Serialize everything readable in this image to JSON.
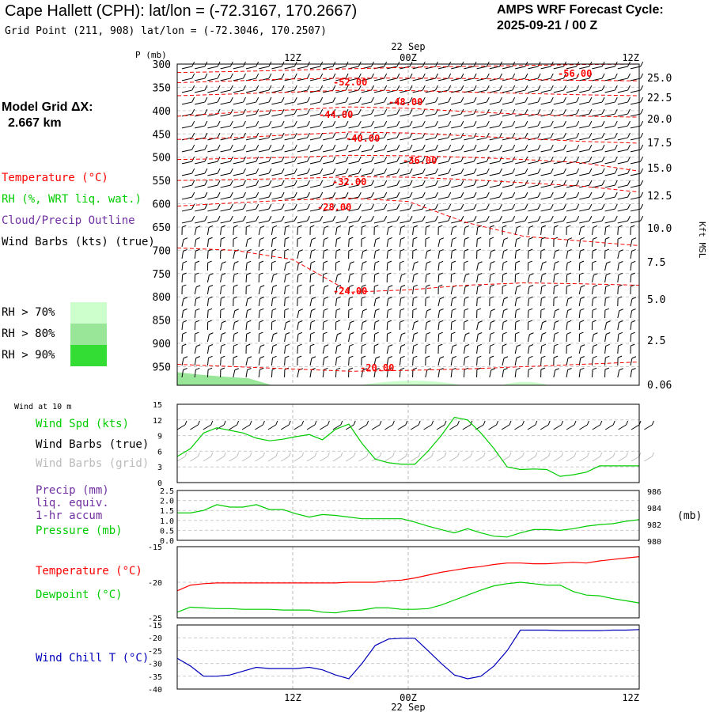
{
  "header": {
    "title": "Cape Hallett (CPH):  lat/lon = (-72.3167, 170.2667)",
    "subtitle": "Grid Point (211, 908) lat/lon = (-72.3046, 170.2507)",
    "cycle_line1": "AMPS WRF Forecast Cycle:",
    "cycle_line2": "2025-09-21 / 00  Z"
  },
  "side": {
    "grid_label": "Model Grid ΔX:",
    "grid_value": "2.667 km",
    "legend_temperature": "Temperature (°C)",
    "legend_rh": "RH (%, WRT liq. wat.)",
    "legend_cloud": "Cloud/Precip Outline",
    "legend_wind": "Wind Barbs (kts) (true)",
    "rh70": "RH > 70%",
    "rh80": "RH > 80%",
    "rh90": "RH > 90%",
    "wind10m": "Wind at 10 m",
    "wind_spd": "Wind Spd (kts)",
    "wind_barbs_true": "Wind Barbs (true)",
    "wind_barbs_grid": "Wind Barbs (grid)",
    "precip1": "Precip (mm)",
    "precip2": "liq. equiv.",
    "precip3": "1-hr accum",
    "pressure": "Pressure (mb)",
    "temperature": "Temperature (°C)",
    "dewpoint": "Dewpoint (°C)",
    "windchill": "Wind Chill T (°C)"
  },
  "colors": {
    "temperature": "#ff0000",
    "rh70": "#ccffcc",
    "rh80": "#99e699",
    "rh90": "#33dd33",
    "green": "#00cc00",
    "purple": "#7030a0",
    "grid_barb": "#bbbbbb",
    "windchill": "#0000bb"
  },
  "chart_data": [
    {
      "type": "line",
      "panel": "vertical cross-section",
      "x_ticks": [
        "12Z",
        "00Z",
        "12Z"
      ],
      "date_label": "22 Sep",
      "ylabel": "P (mb)",
      "y_ticks": [
        300,
        350,
        400,
        450,
        500,
        550,
        600,
        650,
        700,
        750,
        800,
        850,
        900,
        950
      ],
      "ylim": [
        300,
        990
      ],
      "right_axis_label": "Kft MSL",
      "right_axis_ticks": [
        "25.0",
        "22.5",
        "20.0",
        "17.5",
        "15.0",
        "12.5",
        "10.0",
        "7.5",
        "5.0",
        "2.5",
        "0.06"
      ],
      "isotherm_labels": [
        "-52.00",
        "-56.00",
        "-48.00",
        "-44.00",
        "-40.00",
        "-36.00",
        "-32.00",
        "-28.00",
        "-24.00",
        "-20.00"
      ],
      "isotherms": [
        {
          "value": -56,
          "p": [
            318,
            316,
            313,
            310,
            307,
            305,
            303,
            301,
            300
          ]
        },
        {
          "value": -52,
          "p": [
            340,
            336,
            332,
            330,
            330,
            331,
            333,
            335,
            336
          ]
        },
        {
          "value": -48,
          "p": [
            368,
            364,
            360,
            356,
            357,
            360,
            363,
            366,
            368
          ]
        },
        {
          "value": -44,
          "p": [
            412,
            404,
            398,
            392,
            395,
            402,
            408,
            412,
            414
          ]
        },
        {
          "value": -40,
          "p": [
            462,
            458,
            452,
            446,
            448,
            454,
            460,
            466,
            470
          ]
        },
        {
          "value": -36,
          "p": [
            505,
            503,
            500,
            496,
            497,
            500,
            505,
            512,
            530
          ]
        },
        {
          "value": -32,
          "p": [
            550,
            548,
            546,
            542,
            543,
            548,
            555,
            562,
            575
          ]
        },
        {
          "value": -28,
          "p": [
            605,
            598,
            592,
            588,
            595,
            640,
            670,
            680,
            690
          ]
        },
        {
          "value": -24,
          "p": [
            695,
            700,
            720,
            790,
            785,
            775,
            770,
            772,
            775
          ]
        },
        {
          "value": -20,
          "p": [
            945,
            950,
            955,
            960,
            958,
            955,
            950,
            945,
            940
          ]
        }
      ],
      "x_hours": [
        0,
        6,
        12,
        18,
        24,
        30,
        36,
        42,
        48
      ]
    },
    {
      "type": "line",
      "panel": "wind at 10 m",
      "y_ticks": [
        0,
        3,
        6,
        9,
        12,
        15
      ],
      "ylim": [
        0,
        15
      ],
      "series": [
        {
          "name": "Wind Spd (kts)",
          "color": "#00cc00",
          "values": [
            5,
            6.5,
            9.5,
            10.5,
            10,
            9.5,
            8.5,
            8,
            8.3,
            8.8,
            9.2,
            8.2,
            10.2,
            11.2,
            7.5,
            4.5,
            3.8,
            3.5,
            3.5,
            6,
            9,
            12.5,
            12,
            9.5,
            6.5,
            3,
            2.5,
            2.6,
            2.5,
            1.2,
            1.5,
            2,
            3.2,
            3.2,
            3.2,
            3.2
          ]
        }
      ]
    },
    {
      "type": "line",
      "panel": "precip / pressure",
      "left_ticks": [
        "0.0",
        "0.5",
        "1.0",
        "1.5",
        "2.0",
        "2.5"
      ],
      "right_ticks": [
        "980",
        "982",
        "984",
        "986"
      ],
      "right_unit": "(mb)",
      "series": [
        {
          "name": "Pressure (mb)",
          "color": "#00cc00",
          "values": [
            983.3,
            983.3,
            983.6,
            984.3,
            984.0,
            984.0,
            984.3,
            983.7,
            983.7,
            983.2,
            982.8,
            983.1,
            983.0,
            982.8,
            982.6,
            982.6,
            982.6,
            982.6,
            982.2,
            981.7,
            981.3,
            980.9,
            981.4,
            980.9,
            980.5,
            980.4,
            980.9,
            981.3,
            981.3,
            981.2,
            981.4,
            981.7,
            981.9,
            982.0,
            982.3,
            982.5
          ]
        }
      ]
    },
    {
      "type": "line",
      "panel": "temperature / dewpoint",
      "y_ticks": [
        -25,
        -20,
        -15
      ],
      "ylim": [
        -25,
        -15
      ],
      "series": [
        {
          "name": "Temperature (°C)",
          "color": "#ff0000",
          "values": [
            -21.2,
            -20.4,
            -20.2,
            -20.1,
            -20.1,
            -20.1,
            -20.1,
            -20.1,
            -20.1,
            -20.1,
            -20.1,
            -20.1,
            -20.1,
            -20.0,
            -20.0,
            -20.0,
            -19.8,
            -19.7,
            -19.4,
            -19.0,
            -18.6,
            -18.3,
            -18.0,
            -17.8,
            -17.5,
            -17.3,
            -17.3,
            -17.4,
            -17.4,
            -17.3,
            -17.2,
            -17.3,
            -17.0,
            -16.8,
            -16.6,
            -16.4
          ]
        },
        {
          "name": "Dewpoint (°C)",
          "color": "#00cc00",
          "values": [
            -24.2,
            -23.5,
            -23.6,
            -23.7,
            -23.7,
            -23.8,
            -23.8,
            -23.8,
            -23.9,
            -23.9,
            -23.9,
            -24.2,
            -24.3,
            -24.0,
            -23.9,
            -23.6,
            -23.6,
            -23.8,
            -23.8,
            -23.7,
            -23.2,
            -22.5,
            -21.8,
            -21.1,
            -20.5,
            -20.2,
            -20.0,
            -20.2,
            -20.4,
            -20.4,
            -21.3,
            -21.8,
            -21.9,
            -22.3,
            -22.6,
            -22.9
          ]
        }
      ]
    },
    {
      "type": "line",
      "panel": "wind chill",
      "y_ticks": [
        -40,
        -35,
        -30,
        -25,
        -20,
        -15
      ],
      "ylim": [
        -40,
        -15
      ],
      "series": [
        {
          "name": "Wind Chill T (°C)",
          "color": "#0000bb",
          "values": [
            -28,
            -31,
            -35,
            -35,
            -34.5,
            -33,
            -31.5,
            -32,
            -32,
            -32,
            -31.5,
            -32.5,
            -34.5,
            -36,
            -30,
            -23,
            -20.5,
            -20.2,
            -20.2,
            -25,
            -30,
            -34.5,
            -36,
            -35,
            -31,
            -25,
            -17,
            -17,
            -17,
            -17.2,
            -17.2,
            -17.2,
            -17.2,
            -17,
            -17,
            -16.8
          ]
        }
      ]
    }
  ]
}
